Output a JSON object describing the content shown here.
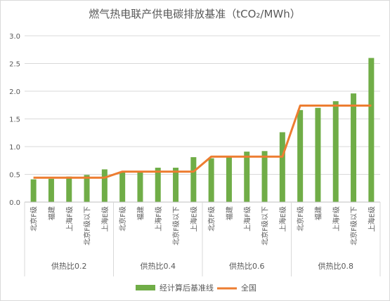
{
  "chart_data": {
    "type": "bar",
    "title": "燃气热电联产供电碳排放基准（tCO₂/MWh）",
    "ylim": [
      0,
      3.0
    ],
    "yticks": [
      "0.0",
      "0.5",
      "1.0",
      "1.5",
      "2.0",
      "2.5",
      "3.0"
    ],
    "grid": true,
    "legend_position": "bottom",
    "groups": [
      {
        "label": "供热比0.2",
        "categories": [
          "北京F级",
          "福建",
          "上海F级",
          "北京F级以下",
          "上海E级"
        ]
      },
      {
        "label": "供热比0.4",
        "categories": [
          "北京F级",
          "福建",
          "上海F级",
          "北京F级以下",
          "上海E级"
        ]
      },
      {
        "label": "供热比0.6",
        "categories": [
          "北京F级",
          "福建",
          "上海F级",
          "北京F级以下",
          "上海E级"
        ]
      },
      {
        "label": "供热比0.8",
        "categories": [
          "北京F级",
          "福建",
          "上海F级",
          "北京F级以下",
          "上海E级"
        ]
      }
    ],
    "series": [
      {
        "name": "经计算后基准线",
        "type": "bar",
        "color": "#70ad47",
        "values": [
          0.41,
          0.42,
          0.46,
          0.49,
          0.59,
          0.54,
          0.56,
          0.62,
          0.62,
          0.81,
          0.79,
          0.82,
          0.91,
          0.92,
          1.26,
          1.66,
          1.7,
          1.82,
          1.96,
          2.6
        ]
      },
      {
        "name": "全国",
        "type": "line",
        "color": "#ed7d31",
        "values": [
          0.44,
          0.44,
          0.44,
          0.44,
          0.44,
          0.55,
          0.55,
          0.55,
          0.55,
          0.55,
          0.82,
          0.82,
          0.82,
          0.82,
          0.82,
          1.74,
          1.74,
          1.74,
          1.74,
          1.74
        ]
      }
    ]
  }
}
